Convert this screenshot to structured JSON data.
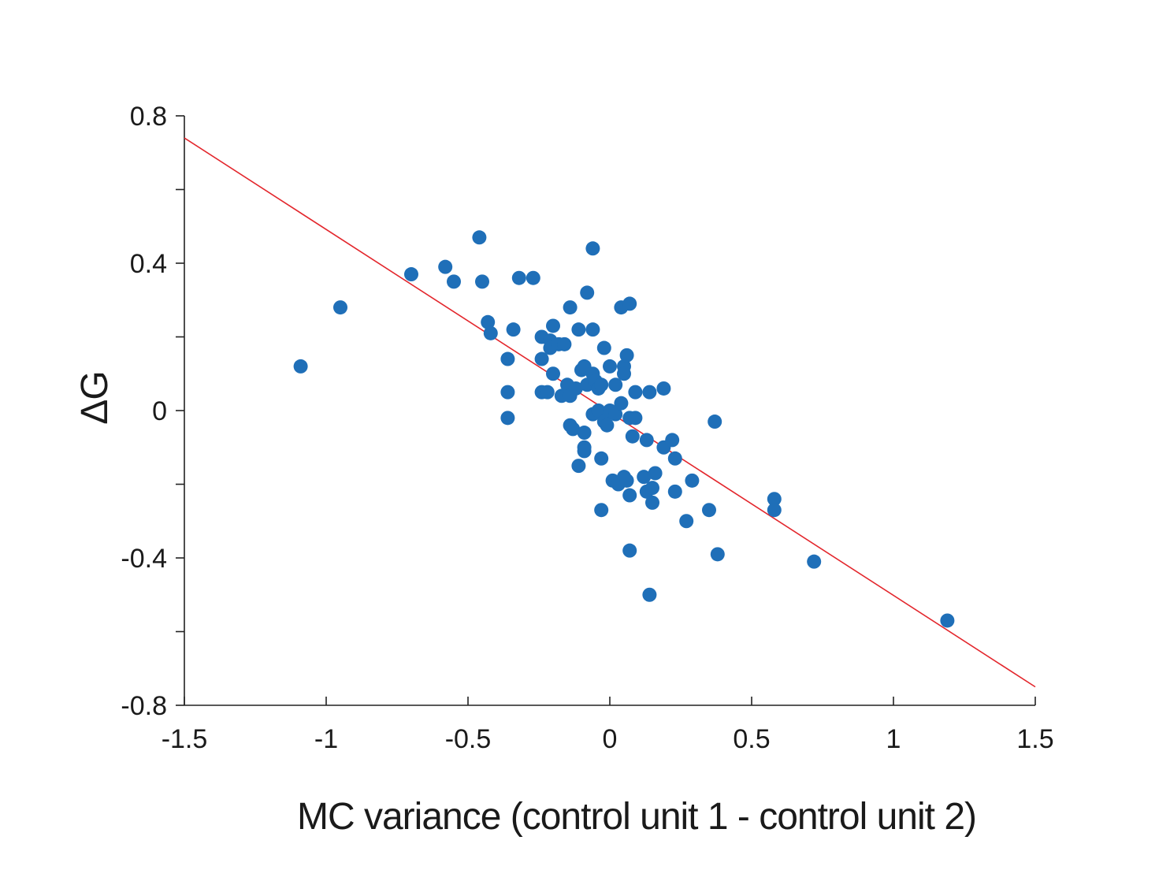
{
  "chart_data": {
    "type": "scatter",
    "title": "",
    "xlabel": "MC variance (control unit 1 - control unit 2)",
    "ylabel": "ΔG",
    "xlim": [
      -1.5,
      1.5
    ],
    "ylim": [
      -0.8,
      0.8
    ],
    "x_ticks": [
      -1.5,
      -1,
      -0.5,
      0,
      0.5,
      1,
      1.5
    ],
    "x_tick_labels": [
      "-1.5",
      "-1",
      "-0.5",
      "0",
      "0.5",
      "1",
      "1.5"
    ],
    "y_ticks": [
      -0.8,
      -0.4,
      0,
      0.4,
      0.8
    ],
    "y_tick_labels": [
      "-0.8",
      "-0.4",
      "0",
      "0.4",
      "0.8"
    ],
    "y_minor_ticks": [
      -0.6,
      -0.2,
      0.2,
      0.6
    ],
    "grid": false,
    "series": [
      {
        "color": "#1f6fb8",
        "points": [
          [
            -1.09,
            0.12
          ],
          [
            -0.95,
            0.28
          ],
          [
            -0.7,
            0.37
          ],
          [
            -0.58,
            0.39
          ],
          [
            -0.55,
            0.35
          ],
          [
            -0.46,
            0.47
          ],
          [
            -0.45,
            0.35
          ],
          [
            -0.43,
            0.24
          ],
          [
            -0.42,
            0.21
          ],
          [
            -0.36,
            0.14
          ],
          [
            -0.36,
            0.05
          ],
          [
            -0.36,
            -0.02
          ],
          [
            -0.34,
            0.22
          ],
          [
            -0.32,
            0.36
          ],
          [
            -0.27,
            0.36
          ],
          [
            -0.24,
            0.2
          ],
          [
            -0.24,
            0.14
          ],
          [
            -0.24,
            0.05
          ],
          [
            -0.22,
            0.05
          ],
          [
            -0.21,
            0.19
          ],
          [
            -0.21,
            0.17
          ],
          [
            -0.2,
            0.23
          ],
          [
            -0.2,
            0.1
          ],
          [
            -0.18,
            0.18
          ],
          [
            -0.17,
            0.04
          ],
          [
            -0.16,
            0.18
          ],
          [
            -0.15,
            0.07
          ],
          [
            -0.14,
            0.28
          ],
          [
            -0.14,
            0.04
          ],
          [
            -0.14,
            -0.04
          ],
          [
            -0.13,
            -0.05
          ],
          [
            -0.12,
            0.06
          ],
          [
            -0.11,
            0.22
          ],
          [
            -0.11,
            -0.15
          ],
          [
            -0.1,
            0.11
          ],
          [
            -0.09,
            0.12
          ],
          [
            -0.09,
            -0.06
          ],
          [
            -0.09,
            -0.1
          ],
          [
            -0.09,
            -0.11
          ],
          [
            -0.08,
            0.32
          ],
          [
            -0.08,
            0.07
          ],
          [
            -0.06,
            0.44
          ],
          [
            -0.06,
            0.22
          ],
          [
            -0.06,
            0.1
          ],
          [
            -0.06,
            -0.01
          ],
          [
            -0.05,
            0.08
          ],
          [
            -0.04,
            0.06
          ],
          [
            -0.04,
            0.0
          ],
          [
            -0.03,
            -0.13
          ],
          [
            -0.03,
            -0.27
          ],
          [
            -0.03,
            0.07
          ],
          [
            -0.02,
            0.17
          ],
          [
            -0.02,
            -0.03
          ],
          [
            -0.01,
            -0.04
          ],
          [
            0.0,
            0.12
          ],
          [
            0.0,
            0.0
          ],
          [
            0.01,
            -0.19
          ],
          [
            0.02,
            0.07
          ],
          [
            0.02,
            -0.01
          ],
          [
            0.03,
            -0.2
          ],
          [
            0.04,
            0.28
          ],
          [
            0.04,
            0.02
          ],
          [
            0.05,
            0.12
          ],
          [
            0.05,
            0.1
          ],
          [
            0.05,
            -0.18
          ],
          [
            0.06,
            0.15
          ],
          [
            0.06,
            -0.19
          ],
          [
            0.07,
            0.29
          ],
          [
            0.07,
            -0.02
          ],
          [
            0.07,
            -0.23
          ],
          [
            0.07,
            -0.38
          ],
          [
            0.08,
            -0.07
          ],
          [
            0.09,
            0.05
          ],
          [
            0.09,
            -0.02
          ],
          [
            0.12,
            -0.18
          ],
          [
            0.13,
            -0.08
          ],
          [
            0.13,
            -0.22
          ],
          [
            0.14,
            0.05
          ],
          [
            0.14,
            -0.5
          ],
          [
            0.15,
            -0.25
          ],
          [
            0.15,
            -0.21
          ],
          [
            0.16,
            -0.17
          ],
          [
            0.19,
            0.06
          ],
          [
            0.19,
            -0.1
          ],
          [
            0.22,
            -0.08
          ],
          [
            0.23,
            -0.13
          ],
          [
            0.23,
            -0.22
          ],
          [
            0.27,
            -0.3
          ],
          [
            0.29,
            -0.19
          ],
          [
            0.35,
            -0.27
          ],
          [
            0.37,
            -0.03
          ],
          [
            0.38,
            -0.39
          ],
          [
            0.58,
            -0.24
          ],
          [
            0.58,
            -0.27
          ],
          [
            0.72,
            -0.41
          ],
          [
            1.19,
            -0.57
          ]
        ]
      }
    ],
    "fit_line": {
      "color": "#e3262c",
      "x": [
        -1.5,
        1.5
      ],
      "y": [
        0.74,
        -0.75
      ]
    }
  }
}
